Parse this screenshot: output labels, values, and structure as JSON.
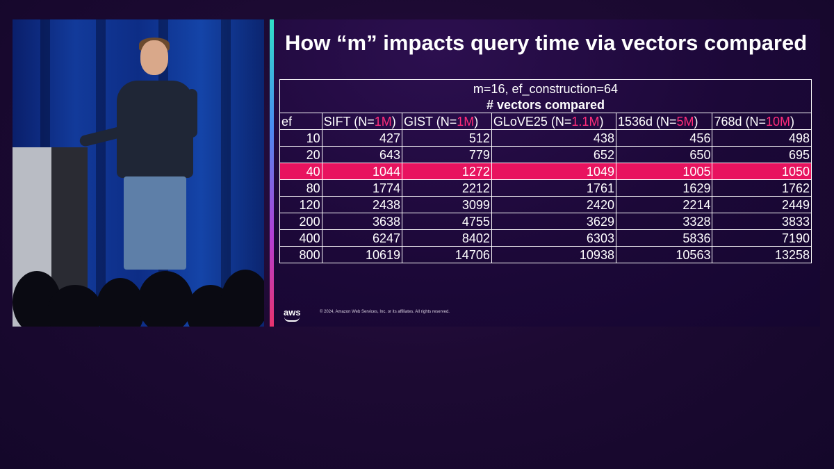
{
  "slide": {
    "title": "How “m” impacts query time via vectors compared",
    "caption_line1": "m=16, ef_construction=64",
    "caption_line2": "# vectors compared",
    "columns": [
      {
        "prefix": "ef",
        "highlight": "",
        "suffix": ""
      },
      {
        "prefix": "SIFT (N=",
        "highlight": "1M",
        "suffix": ")"
      },
      {
        "prefix": "GIST (N=",
        "highlight": "1M",
        "suffix": ")"
      },
      {
        "prefix": "GLoVE25 (N=",
        "highlight": "1.1M",
        "suffix": ")"
      },
      {
        "prefix": "1536d (N=",
        "highlight": "5M",
        "suffix": ")"
      },
      {
        "prefix": "768d (N=",
        "highlight": "10M",
        "suffix": ")"
      }
    ],
    "rows": [
      {
        "ef": "10",
        "values": [
          "427",
          "512",
          "438",
          "456",
          "498"
        ]
      },
      {
        "ef": "20",
        "values": [
          "643",
          "779",
          "652",
          "650",
          "695"
        ]
      },
      {
        "ef": "40",
        "values": [
          "1044",
          "1272",
          "1049",
          "1005",
          "1050"
        ],
        "highlighted": true
      },
      {
        "ef": "80",
        "values": [
          "1774",
          "2212",
          "1761",
          "1629",
          "1762"
        ]
      },
      {
        "ef": "120",
        "values": [
          "2438",
          "3099",
          "2420",
          "2214",
          "2449"
        ]
      },
      {
        "ef": "200",
        "values": [
          "3638",
          "4755",
          "3629",
          "3328",
          "3833"
        ]
      },
      {
        "ef": "400",
        "values": [
          "6247",
          "8402",
          "6303",
          "5836",
          "7190"
        ]
      },
      {
        "ef": "800",
        "values": [
          "10619",
          "14706",
          "10938",
          "10563",
          "13258"
        ]
      }
    ],
    "logo_text": "aws",
    "copyright": "© 2024, Amazon Web Services, Inc. or its affiliates. All rights reserved."
  },
  "colors": {
    "highlight_row": "#e8135f",
    "highlight_text": "#ff2d7a",
    "background": "#1d0a33"
  }
}
